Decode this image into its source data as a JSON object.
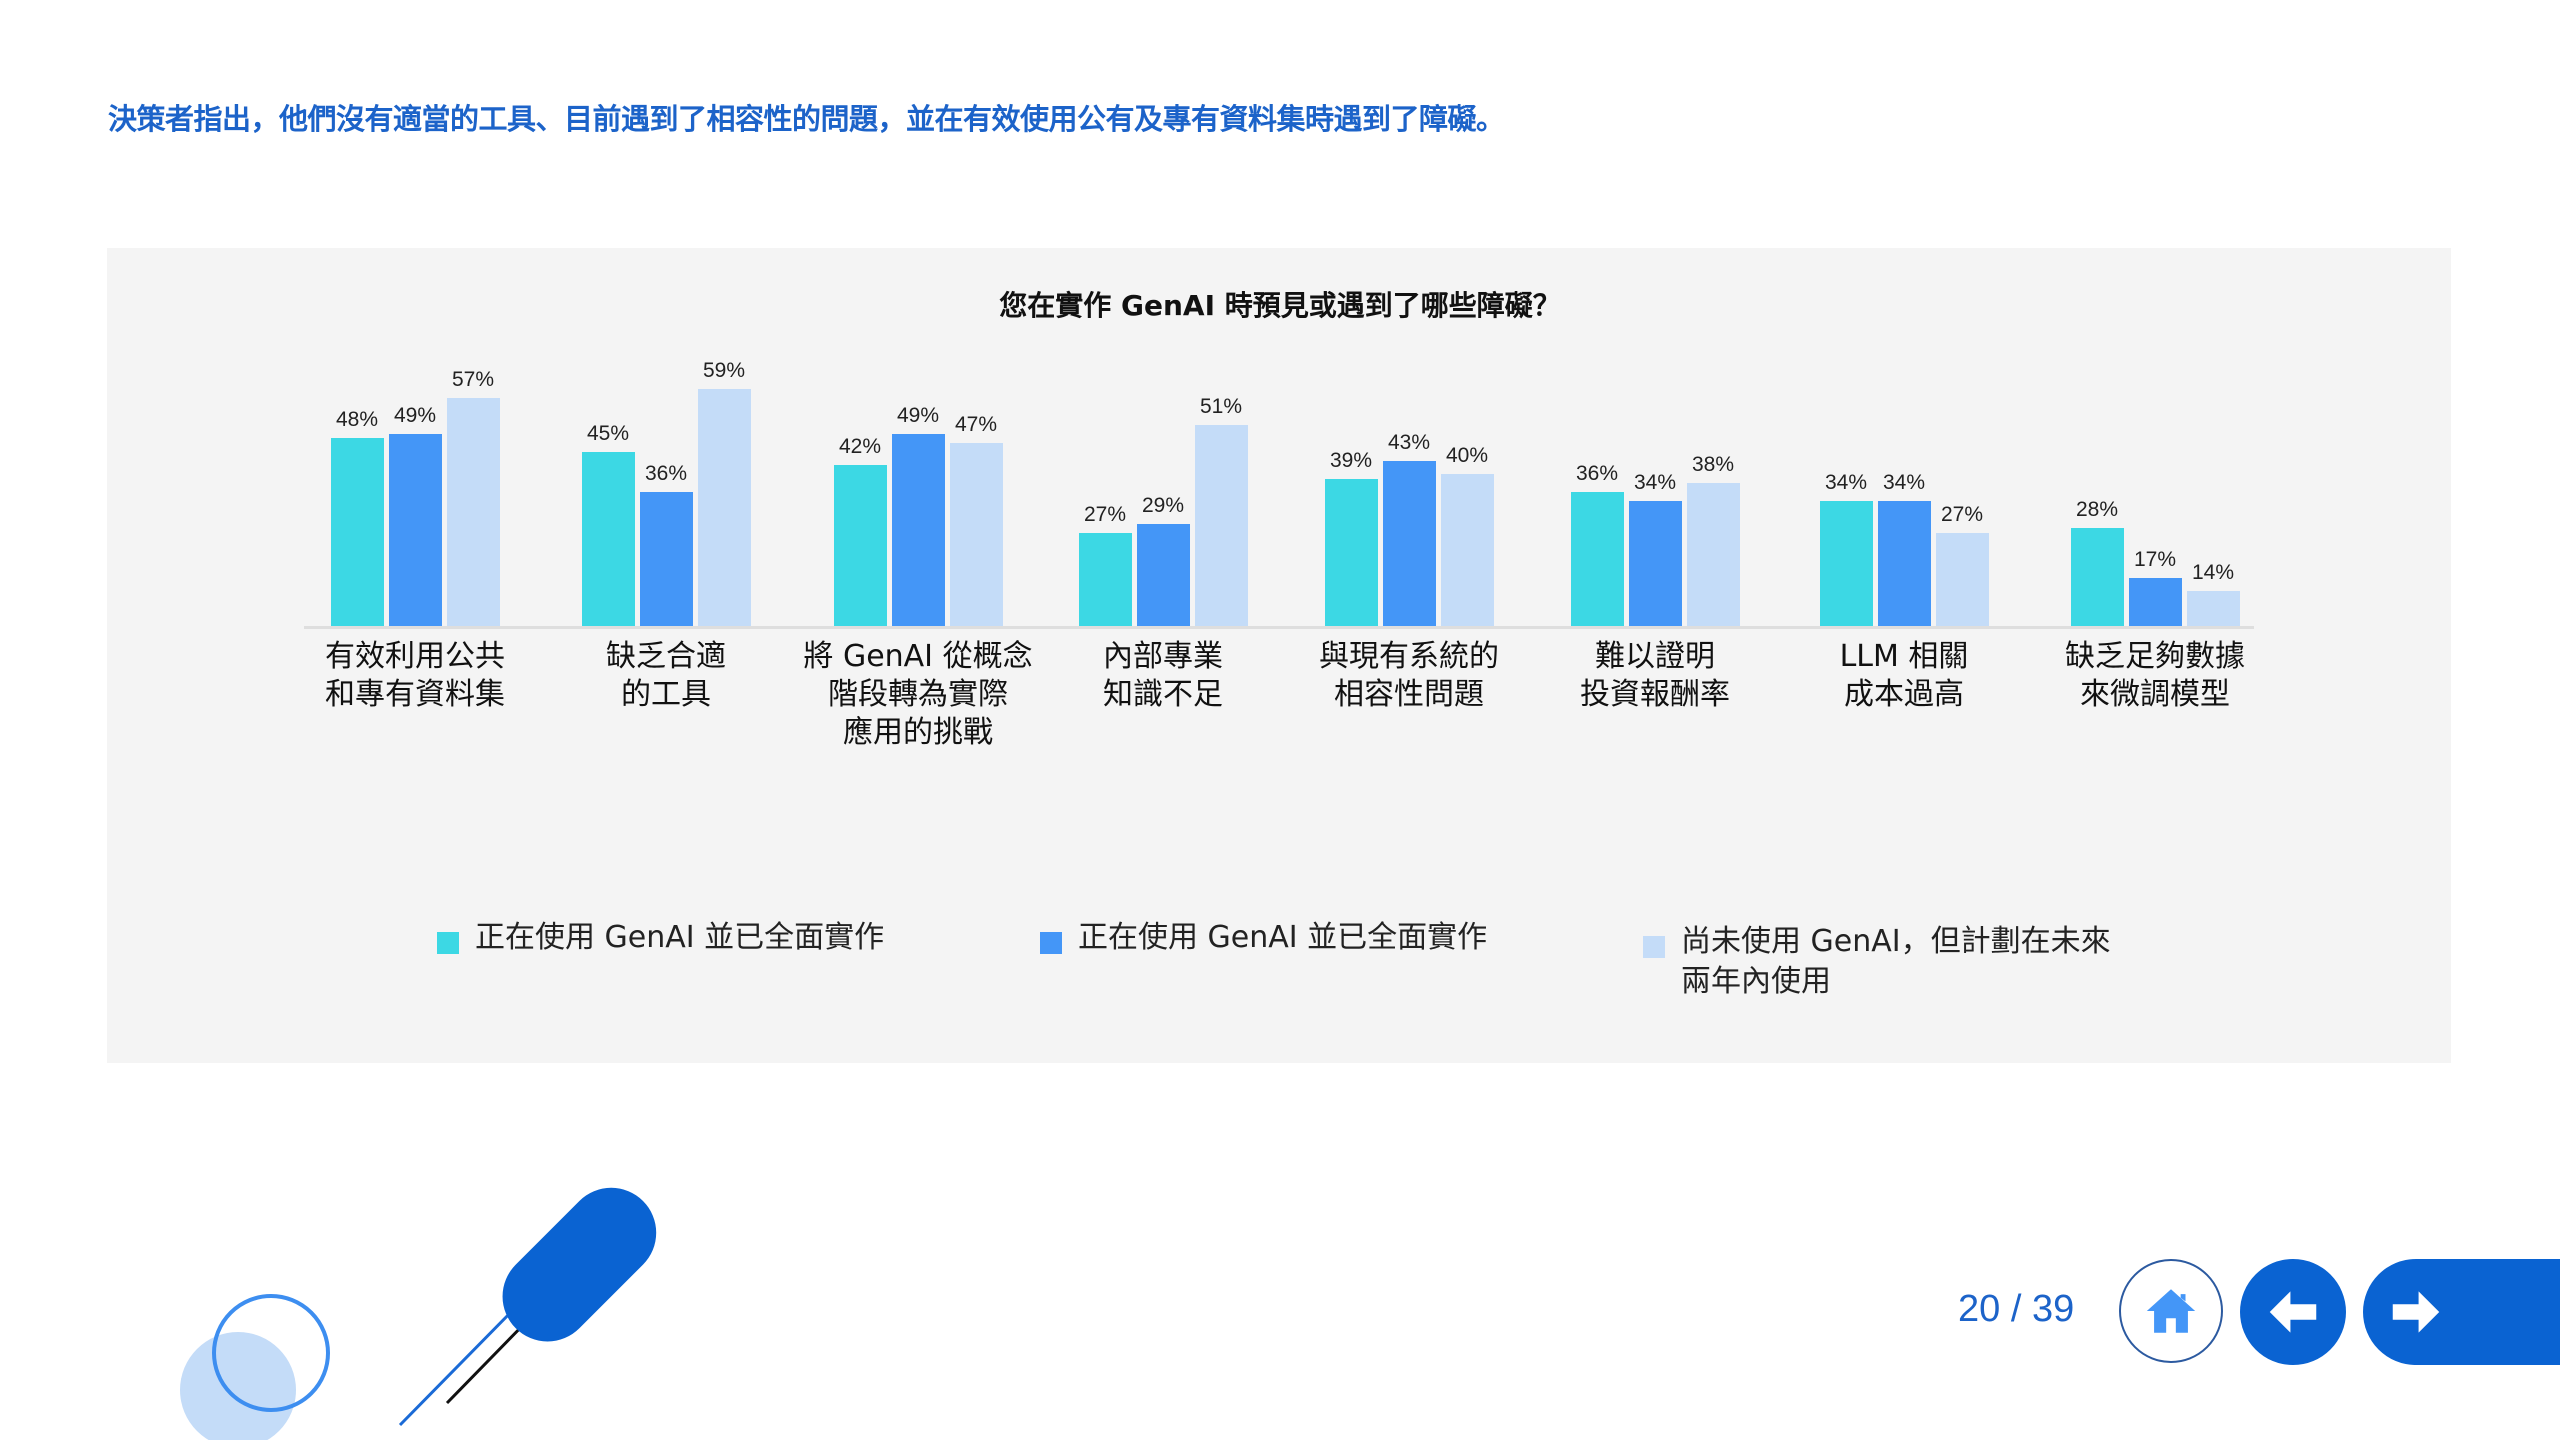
{
  "headline": "決策者指出，他們沒有適當的工具、目前遇到了相容性的問題，並在有效使用公有及專有資料集時遇到了障礙。",
  "colors": {
    "accent": "#1c63c9",
    "series_teal": "#3cd8e4",
    "series_blue": "#4496f7",
    "series_light": "#c4dcf8",
    "panel_bg": "#f4f4f4",
    "nav_blue": "#0a63d2"
  },
  "chart_data": {
    "type": "bar",
    "title": "您在實作 GenAI 時預見或遇到了哪些障礙？",
    "xlabel": "",
    "ylabel": "",
    "grid": false,
    "legend_position": "bottom",
    "categories": [
      "有效利用公共和專有資料集",
      "缺乏合適的工具",
      "將 GenAI 從概念階段轉為實際應用的挑戰",
      "內部專業知識不足",
      "與現有系統的相容性問題",
      "難以證明投資報酬率",
      "LLM 相關成本過高",
      "缺乏足夠數據來微調模型"
    ],
    "series": [
      {
        "name": "正在使用 GenAI 並已全面實作",
        "color": "#3cd8e4",
        "values": [
          48,
          45,
          42,
          27,
          39,
          36,
          34,
          28
        ]
      },
      {
        "name": "正在使用 GenAI 並已全面實作",
        "color": "#4496f7",
        "values": [
          49,
          36,
          49,
          29,
          43,
          34,
          34,
          17
        ]
      },
      {
        "name": "尚未使用 GenAI，但計劃在未來兩年內使用",
        "color": "#c4dcf8",
        "values": [
          57,
          59,
          47,
          51,
          40,
          38,
          27,
          14
        ]
      }
    ],
    "value_labels": [
      [
        "48%",
        "49%",
        "57%"
      ],
      [
        "45%",
        "36%",
        "59%"
      ],
      [
        "42%",
        "49%",
        "47%"
      ],
      [
        "27%",
        "29%",
        "51%"
      ],
      [
        "39%",
        "43%",
        "40%"
      ],
      [
        "36%",
        "34%",
        "38%"
      ],
      [
        "34%",
        "34%",
        "27%"
      ],
      [
        "28%",
        "17%",
        "14%"
      ]
    ],
    "category_lines": [
      [
        "有效利用公共",
        "和專有資料集"
      ],
      [
        "缺乏合適",
        "的工具"
      ],
      [
        "將 GenAI 從概念",
        "階段轉為實際",
        "應用的挑戰"
      ],
      [
        "內部專業",
        "知識不足"
      ],
      [
        "與現有系統的",
        "相容性問題"
      ],
      [
        "難以證明",
        "投資報酬率"
      ],
      [
        "LLM 相關",
        "成本過高"
      ],
      [
        "缺乏足夠數據",
        "來微調模型"
      ]
    ]
  },
  "legend": [
    {
      "label": "正在使用 GenAI 並已全面實作"
    },
    {
      "label": "正在使用 GenAI 並已全面實作"
    },
    {
      "line1": "尚未使用 GenAI，但計劃在未來",
      "line2": "兩年內使用"
    }
  ],
  "nav": {
    "page_indicator": "20 / 39",
    "home_icon": "home-icon",
    "prev_icon": "arrow-left-icon",
    "next_icon": "arrow-right-icon"
  }
}
